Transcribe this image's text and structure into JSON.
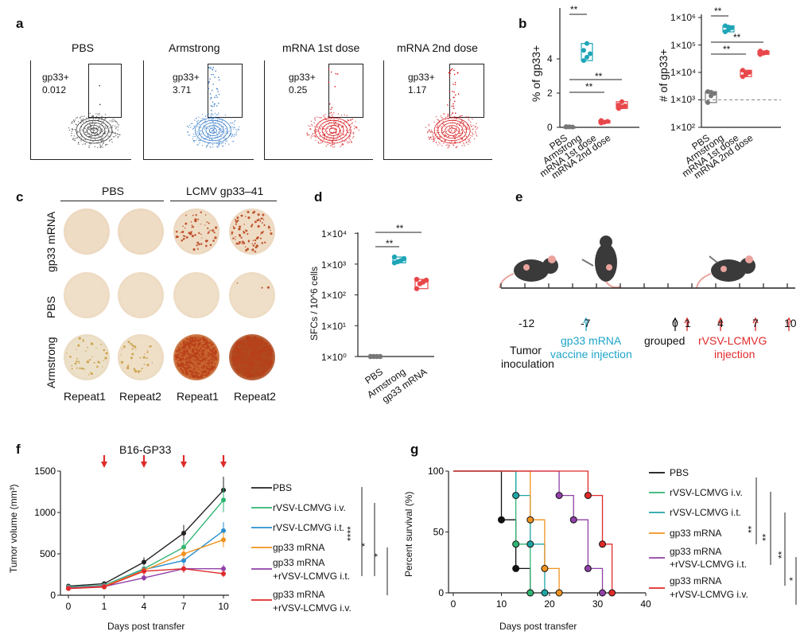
{
  "panels": {
    "a": "a",
    "b": "b",
    "c": "c",
    "d": "d",
    "e": "e",
    "f": "f",
    "g": "g"
  },
  "panel_a": {
    "plots": [
      {
        "title": "PBS",
        "gate_label": "gp33+",
        "gate_value": "0.012",
        "color": "#333333"
      },
      {
        "title": "Armstrong",
        "gate_label": "gp33+",
        "gate_value": "3.71",
        "color": "#3a7dc9"
      },
      {
        "title": "mRNA 1st dose",
        "gate_label": "gp33+",
        "gate_value": "0.25",
        "color": "#d7191c"
      },
      {
        "title": "mRNA 2nd dose",
        "gate_label": "gp33+",
        "gate_value": "1.17",
        "color": "#d7191c"
      }
    ]
  },
  "panel_b": {
    "left": {
      "ylabel": "% of gp33+",
      "yticks": [
        "0",
        "2",
        "4"
      ],
      "sig": [
        "**",
        "**",
        "**"
      ]
    },
    "right": {
      "ylabel": "# of gp33+",
      "yticks": [
        "1×10²",
        "1×10³",
        "1×10⁴",
        "1×10⁵",
        "1×10⁶"
      ],
      "sig": [
        "**",
        "**",
        "**"
      ]
    },
    "categories": [
      "PBS",
      "Armstrong",
      "mRNA 1st dose",
      "mRNA 2nd dose"
    ]
  },
  "panel_c": {
    "col_groups": [
      "PBS",
      "LCMV gp33–41"
    ],
    "rows": [
      "gp33 mRNA",
      "PBS",
      "Armstrong"
    ],
    "repeats": [
      "Repeat1",
      "Repeat2",
      "Repeat1",
      "Repeat2"
    ]
  },
  "panel_d": {
    "ylabel": "SFCs / 10^6 cells",
    "yticks": [
      "1×10⁰",
      "1×10¹",
      "1×10²",
      "1×10³",
      "1×10⁴"
    ],
    "categories": [
      "PBS",
      "Armstrong",
      "gp33 mRNA"
    ],
    "sig": [
      "**",
      "**"
    ]
  },
  "panel_e": {
    "ticks": [
      "-12",
      "-7",
      "0",
      "1",
      "4",
      "7",
      "10"
    ],
    "tumor_label": [
      "Tumor",
      "inoculation"
    ],
    "vaccine_label": [
      "gp33 mRNA",
      "vaccine injection"
    ],
    "grouped_label": "grouped",
    "rvsv_label": [
      "rVSV-LCMVG",
      "injection"
    ]
  },
  "chart_data": [
    {
      "type": "line",
      "title": "B16-GP33",
      "xlabel": "Days post transfer",
      "ylabel": "Tumor volume (mm³)",
      "x": [
        0,
        1,
        4,
        7,
        10
      ],
      "ylim": [
        0,
        1500
      ],
      "yticks": [
        "0",
        "500",
        "1000",
        "1500"
      ],
      "series": [
        {
          "name": "PBS",
          "color": "#222222",
          "values": [
            110,
            140,
            400,
            750,
            1270
          ]
        },
        {
          "name": "rVSV-LCMVG i.v.",
          "color": "#2fb573",
          "values": [
            100,
            120,
            320,
            580,
            1150
          ]
        },
        {
          "name": "rVSV-LCMVG i.t.",
          "color": "#2a8fd1",
          "values": [
            95,
            115,
            310,
            420,
            780
          ]
        },
        {
          "name": "gp33 mRNA",
          "color": "#f0921e",
          "values": [
            90,
            110,
            300,
            500,
            670
          ]
        },
        {
          "name": "gp33 mRNA\n+rVSV-LCMVG i.t.",
          "color": "#9040a8",
          "values": [
            85,
            105,
            210,
            320,
            320
          ]
        },
        {
          "name": "gp33 mRNA\n+rVSV-LCMVG i.v.",
          "color": "#e02a2a",
          "values": [
            80,
            100,
            290,
            320,
            260
          ]
        }
      ],
      "legend": [
        "PBS",
        "rVSV-LCMVG i.v.",
        "rVSV-LCMVG i.t.",
        "gp33 mRNA",
        "gp33 mRNA",
        "+rVSV-LCMVG i.t.",
        "gp33 mRNA",
        "+rVSV-LCMVG i.v."
      ],
      "sig": [
        "****",
        "*",
        "*"
      ]
    },
    {
      "type": "line",
      "title": "",
      "xlabel": "Days post transfer",
      "ylabel": "Percent survival (%)",
      "xlim": [
        0,
        40
      ],
      "xticks": [
        "0",
        "10",
        "20",
        "30",
        "40"
      ],
      "ylim": [
        0,
        100
      ],
      "yticks": [
        "0",
        "50",
        "100"
      ],
      "series": [
        {
          "name": "PBS",
          "color": "#111111",
          "steps": [
            [
              0,
              100
            ],
            [
              10,
              100
            ],
            [
              10,
              60
            ],
            [
              13,
              60
            ],
            [
              13,
              20
            ],
            [
              16,
              20
            ],
            [
              16,
              0
            ]
          ]
        },
        {
          "name": "rVSV-LCMVG i.v.",
          "color": "#2fb573",
          "steps": [
            [
              0,
              100
            ],
            [
              13,
              100
            ],
            [
              13,
              40
            ],
            [
              16,
              40
            ],
            [
              16,
              0
            ]
          ]
        },
        {
          "name": "rVSV-LCMVG i.t.",
          "color": "#1fa5a5",
          "steps": [
            [
              0,
              100
            ],
            [
              13,
              100
            ],
            [
              13,
              80
            ],
            [
              16,
              80
            ],
            [
              16,
              40
            ],
            [
              19,
              40
            ],
            [
              19,
              0
            ]
          ]
        },
        {
          "name": "gp33 mRNA",
          "color": "#f0921e",
          "steps": [
            [
              0,
              100
            ],
            [
              16,
              100
            ],
            [
              16,
              60
            ],
            [
              19,
              60
            ],
            [
              19,
              20
            ],
            [
              22,
              20
            ],
            [
              22,
              0
            ]
          ]
        },
        {
          "name": "gp33 mRNA +rVSV-LCMVG i.t.",
          "color": "#9040a8",
          "steps": [
            [
              0,
              100
            ],
            [
              22,
              100
            ],
            [
              22,
              80
            ],
            [
              25,
              80
            ],
            [
              25,
              60
            ],
            [
              28,
              60
            ],
            [
              28,
              20
            ],
            [
              31,
              20
            ],
            [
              31,
              0
            ]
          ]
        },
        {
          "name": "gp33 mRNA +rVSV-LCMVG i.v.",
          "color": "#e02a2a",
          "steps": [
            [
              0,
              100
            ],
            [
              28,
              100
            ],
            [
              28,
              80
            ],
            [
              31,
              80
            ],
            [
              31,
              40
            ],
            [
              33,
              40
            ],
            [
              33,
              0
            ]
          ]
        }
      ],
      "legend": [
        "PBS",
        "rVSV-LCMVG i.v.",
        "rVSV-LCMVG i.t.",
        "gp33 mRNA",
        "gp33 mRNA",
        "+rVSV-LCMVG i.t.",
        "gp33 mRNA",
        "+rVSV-LCMVG i.v."
      ],
      "sig": [
        "**",
        "**",
        "**",
        "*"
      ]
    }
  ]
}
